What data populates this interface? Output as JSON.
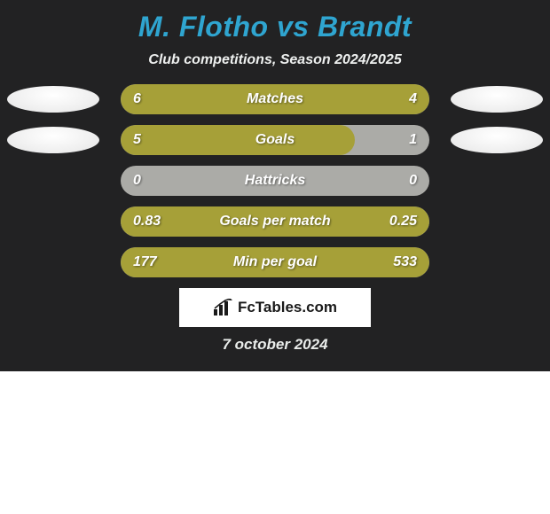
{
  "card": {
    "background_color": "#222223",
    "title": "M. Flotho vs Brandt",
    "title_color": "#2fa5d0",
    "subtitle": "Club competitions, Season 2024/2025",
    "subtitle_color": "#eef0ef",
    "brand": "FcTables.com",
    "date": "7 october 2024",
    "date_color": "#e9ecea"
  },
  "bars": {
    "outer_color": "#ababa7",
    "fill_color": "#a6a038",
    "rows": [
      {
        "label": "Matches",
        "left": "6",
        "right": "4",
        "fill_pct": 100,
        "show_ovals": true
      },
      {
        "label": "Goals",
        "left": "5",
        "right": "1",
        "fill_pct": 76,
        "show_ovals": true
      },
      {
        "label": "Hattricks",
        "left": "0",
        "right": "0",
        "fill_pct": 0,
        "show_ovals": false
      },
      {
        "label": "Goals per match",
        "left": "0.83",
        "right": "0.25",
        "fill_pct": 100,
        "show_ovals": false
      },
      {
        "label": "Min per goal",
        "left": "177",
        "right": "533",
        "fill_pct": 100,
        "show_ovals": false
      }
    ]
  }
}
